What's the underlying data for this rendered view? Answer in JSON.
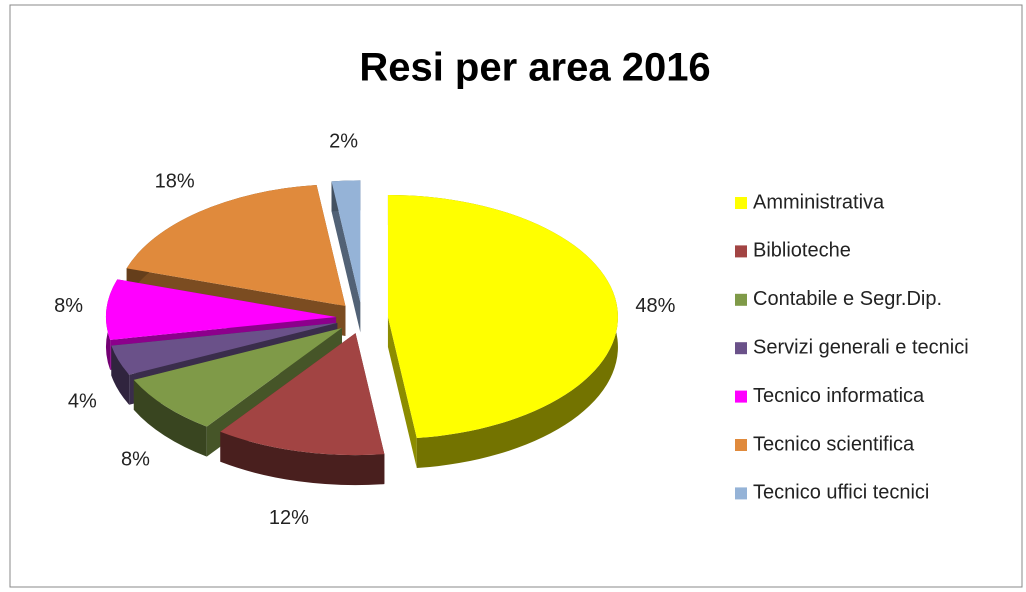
{
  "chart_data": {
    "type": "pie",
    "title": "Resi per area 2016",
    "categories": [
      "Amministrativa",
      "Biblioteche",
      "Contabile e Segr.Dip.",
      "Servizi generali e tecnici",
      "Tecnico informatica",
      "Tecnico scientifica",
      "Tecnico uffici tecnici"
    ],
    "values": [
      48,
      12,
      8,
      4,
      8,
      18,
      2
    ],
    "value_labels": [
      "48%",
      "12%",
      "8%",
      "4%",
      "8%",
      "18%",
      "2%"
    ],
    "colors": [
      "#ffff00",
      "#a24443",
      "#7f9a48",
      "#6a5189",
      "#ff00ff",
      "#e08a3c",
      "#95b3d7"
    ],
    "legend": "right"
  }
}
